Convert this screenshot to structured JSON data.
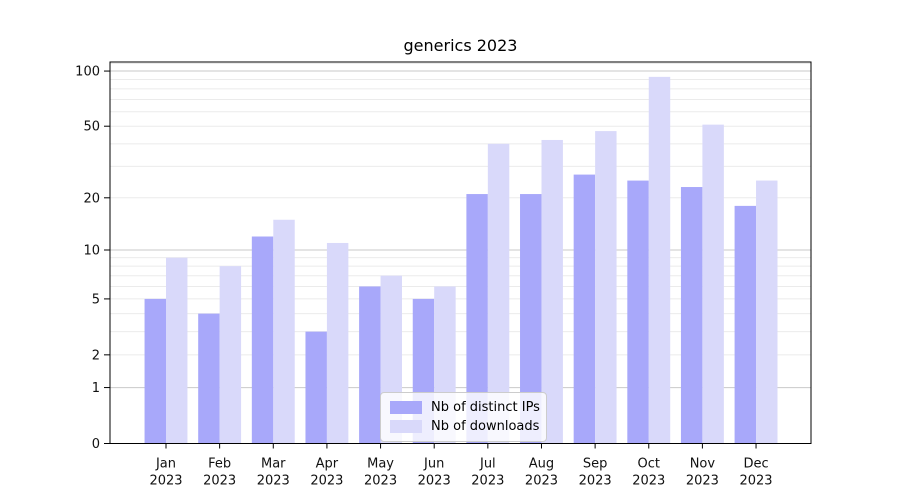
{
  "title": "generics 2023",
  "legend": {
    "items": [
      {
        "label": "Nb of distinct IPs",
        "color": "#a8a8fa"
      },
      {
        "label": "Nb of downloads",
        "color": "#d9d9fa"
      }
    ]
  },
  "chart_data": {
    "type": "bar",
    "title": "generics 2023",
    "categories": [
      "Jan 2023",
      "Feb 2023",
      "Mar 2023",
      "Apr 2023",
      "May 2023",
      "Jun 2023",
      "Jul 2023",
      "Aug 2023",
      "Sep 2023",
      "Oct 2023",
      "Nov 2023",
      "Dec 2023"
    ],
    "series": [
      {
        "name": "Nb of distinct IPs",
        "color": "#a8a8fa",
        "values": [
          5,
          4,
          12,
          3,
          6,
          5,
          21,
          21,
          27,
          25,
          23,
          18
        ]
      },
      {
        "name": "Nb of downloads",
        "color": "#d9d9fa",
        "values": [
          9,
          8,
          15,
          11,
          7,
          6,
          40,
          42,
          47,
          93,
          51,
          25
        ]
      }
    ],
    "yscale": "log1p",
    "ylim": [
      0,
      112
    ],
    "y_ticks": [
      0,
      1,
      2,
      5,
      10,
      20,
      50,
      100
    ],
    "y_major_gridlines": [
      1,
      10,
      100
    ],
    "y_minor_gridlines": [
      2,
      3,
      4,
      5,
      6,
      7,
      8,
      9,
      20,
      30,
      40,
      50,
      60,
      70,
      80,
      90,
      110
    ],
    "grid": true,
    "legend_position": "lower center",
    "xlabel": "",
    "ylabel": ""
  },
  "colors": {
    "grid_major": "#c9c9c9",
    "grid_minor": "#ebebeb",
    "axis": "#000000",
    "tick_label": "#111111"
  }
}
